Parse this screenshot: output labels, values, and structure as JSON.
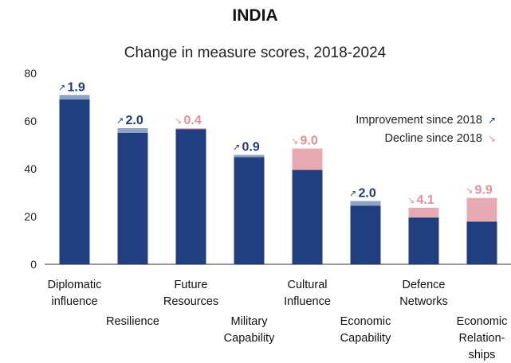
{
  "chart_data": {
    "type": "bar",
    "title": "INDIA",
    "subtitle": "Change in measure scores, 2018-2024",
    "xlabel": "",
    "ylabel": "",
    "ylim": [
      0,
      80
    ],
    "yticks": [
      0,
      20,
      40,
      60,
      80
    ],
    "grid": false,
    "legend_position": "top-right",
    "categories": [
      [
        "Diplomatic",
        "influence"
      ],
      [
        "Resilience"
      ],
      [
        "Future",
        "Resources"
      ],
      [
        "Military",
        "Capability"
      ],
      [
        "Cultural",
        "Influence"
      ],
      [
        "Economic",
        "Capability"
      ],
      [
        "Defence",
        "Networks"
      ],
      [
        "Economic",
        "Relation-",
        "ships"
      ]
    ],
    "values_2024": [
      70.9,
      57.0,
      56.6,
      45.8,
      39.5,
      26.5,
      19.6,
      17.9
    ],
    "values_2018": [
      69.0,
      55.0,
      57.0,
      44.9,
      48.5,
      24.5,
      23.7,
      27.8
    ],
    "changes": [
      {
        "direction": "up",
        "label": "1.9"
      },
      {
        "direction": "up",
        "label": "2.0"
      },
      {
        "direction": "down",
        "label": "0.4"
      },
      {
        "direction": "up",
        "label": "0.9"
      },
      {
        "direction": "down",
        "label": "9.0"
      },
      {
        "direction": "up",
        "label": "2.0"
      },
      {
        "direction": "down",
        "label": "4.1"
      },
      {
        "direction": "down",
        "label": "9.9"
      }
    ],
    "legend": [
      {
        "label": "Improvement since 2018",
        "direction": "up"
      },
      {
        "label": "Decline since 2018",
        "direction": "down"
      }
    ],
    "arrows": {
      "up": "↗",
      "down": "↘"
    },
    "colors": {
      "bar": "#213f7e",
      "improvement": "#8ea4c7",
      "decline": "#e7a9b3",
      "up_text": "#1f3a70",
      "down_text": "#e08f9b",
      "axis": "#333333"
    }
  }
}
